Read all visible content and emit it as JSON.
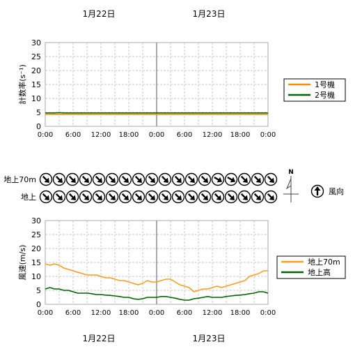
{
  "dates": [
    "1月22日",
    "1月23日"
  ],
  "x_ticks": [
    "0:00",
    "6:00",
    "12:00",
    "18:00",
    "0:00",
    "6:00",
    "12:00",
    "18:00",
    "0:00"
  ],
  "chart_data": [
    {
      "type": "line",
      "ylabel": "計数率(s⁻¹)",
      "ylim": [
        0,
        30
      ],
      "yticks": [
        0,
        5,
        10,
        15,
        20,
        25,
        30
      ],
      "x_unit": "hours from 1月22日 0:00",
      "xlim": [
        0,
        48
      ],
      "grid": true,
      "legend_placement": "right",
      "series": [
        {
          "name": "1号機",
          "color": "#ff8c00",
          "values": [
            4.3,
            4.3,
            4.3,
            4.3,
            4.3,
            4.3,
            4.3,
            4.3,
            4.3,
            4.3,
            4.3,
            4.3,
            4.3,
            4.3,
            4.3,
            4.3,
            4.3,
            4.3,
            4.3,
            4.3,
            4.3,
            4.3,
            4.3,
            4.3,
            4.3,
            4.3,
            4.3,
            4.3,
            4.3,
            4.3,
            4.3,
            4.3,
            4.3,
            4.3,
            4.3,
            4.3,
            4.3,
            4.3,
            4.3,
            4.3,
            4.3,
            4.3,
            4.3,
            4.3,
            4.3,
            4.3,
            4.3,
            4.3,
            4.3
          ]
        },
        {
          "name": "2号機",
          "color": "#006400",
          "values": [
            4.8,
            4.8,
            4.8,
            4.9,
            4.8,
            4.8,
            4.8,
            4.8,
            4.8,
            4.8,
            4.8,
            4.8,
            4.8,
            4.8,
            4.8,
            4.8,
            4.8,
            4.8,
            4.8,
            4.8,
            4.8,
            4.8,
            4.8,
            4.8,
            4.8,
            4.8,
            4.8,
            4.8,
            4.8,
            4.8,
            4.8,
            4.8,
            4.8,
            4.8,
            4.8,
            4.8,
            4.8,
            4.8,
            4.8,
            4.8,
            4.8,
            4.8,
            4.8,
            4.8,
            4.8,
            4.8,
            4.8,
            4.8,
            4.8
          ]
        }
      ]
    },
    {
      "type": "line",
      "ylabel": "風速(m/s)",
      "ylim": [
        0,
        30
      ],
      "yticks": [
        0,
        5,
        10,
        15,
        20,
        25,
        30
      ],
      "x_unit": "hours from 1月22日 0:00",
      "xlim": [
        0,
        48
      ],
      "grid": true,
      "legend_placement": "right",
      "series": [
        {
          "name": "地上70m",
          "color": "#ff9c1a",
          "values": [
            14.5,
            14.0,
            14.5,
            14.0,
            13.0,
            12.5,
            12.0,
            11.5,
            11.0,
            10.5,
            10.5,
            10.5,
            10.0,
            9.5,
            9.5,
            9.0,
            8.5,
            8.5,
            8.0,
            7.5,
            7.0,
            7.5,
            8.5,
            8.0,
            8.0,
            8.5,
            9.0,
            9.0,
            8.0,
            7.0,
            6.5,
            6.0,
            4.5,
            5.0,
            5.5,
            5.5,
            6.0,
            6.5,
            6.0,
            6.5,
            7.0,
            7.5,
            8.0,
            8.5,
            10.0,
            10.5,
            11.0,
            12.0,
            12.0
          ]
        },
        {
          "name": "地上高",
          "color": "#006400",
          "values": [
            5.5,
            6.0,
            5.5,
            5.5,
            5.0,
            5.0,
            4.5,
            4.0,
            4.0,
            4.0,
            3.8,
            3.5,
            3.5,
            3.3,
            3.2,
            3.0,
            2.8,
            2.5,
            2.5,
            2.0,
            1.8,
            2.0,
            2.5,
            2.5,
            2.5,
            2.8,
            2.8,
            2.5,
            2.2,
            1.8,
            1.5,
            1.5,
            2.0,
            2.2,
            2.5,
            2.8,
            2.5,
            2.5,
            2.5,
            2.8,
            3.0,
            3.2,
            3.3,
            3.5,
            3.8,
            4.0,
            4.5,
            4.5,
            4.0
          ]
        }
      ]
    }
  ],
  "wind_direction": {
    "row_labels": [
      "地上70m",
      "地上"
    ],
    "count": 18,
    "rows": [
      [
        315,
        315,
        315,
        315,
        315,
        315,
        315,
        315,
        315,
        315,
        315,
        315,
        315,
        300,
        300,
        315,
        315,
        315
      ],
      [
        315,
        315,
        315,
        315,
        315,
        315,
        315,
        315,
        315,
        315,
        315,
        315,
        315,
        315,
        315,
        315,
        315,
        315
      ]
    ],
    "legend_label": "風向",
    "compass_label": "N"
  }
}
